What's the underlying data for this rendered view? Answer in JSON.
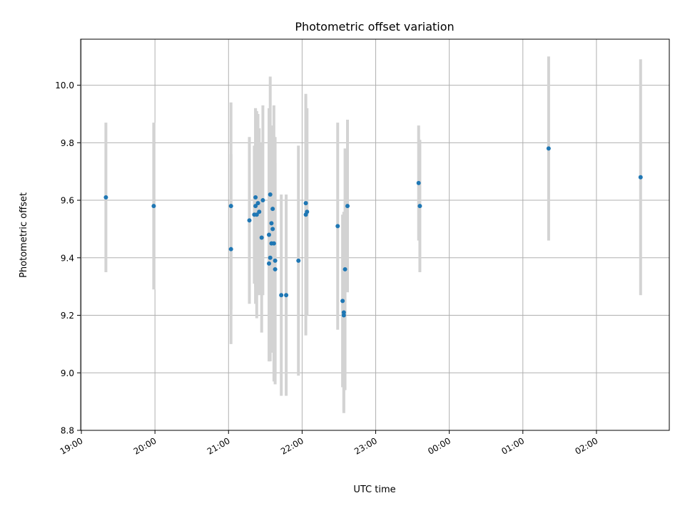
{
  "chart_data": {
    "type": "scatter",
    "title": "Photometric offset variation",
    "xlabel": "UTC time",
    "ylabel": "Photometric offset",
    "x_tick_labels": [
      "19:00",
      "20:00",
      "21:00",
      "22:00",
      "23:00",
      "00:00",
      "01:00",
      "02:00"
    ],
    "y_tick_labels": [
      "8.8",
      "9.0",
      "9.2",
      "9.4",
      "9.6",
      "9.8",
      "10.0"
    ],
    "x_ticks_hours": [
      19,
      20,
      21,
      22,
      23,
      24,
      25,
      26
    ],
    "y_ticks": [
      8.8,
      9.0,
      9.2,
      9.4,
      9.6,
      9.8,
      10.0
    ],
    "xlim_hours": [
      18.99,
      26.99
    ],
    "ylim": [
      8.8,
      10.16
    ],
    "grid": true,
    "marker_color": "#1f77b4",
    "errorbar_color": "#d3d3d3",
    "points": [
      {
        "t": "19:20",
        "y": 9.61,
        "yerr": 0.26
      },
      {
        "t": "19:59",
        "y": 9.58,
        "yerr": 0.29
      },
      {
        "t": "21:02",
        "y": 9.43,
        "yerr": 0.33
      },
      {
        "t": "21:02",
        "y": 9.58,
        "yerr": 0.36
      },
      {
        "t": "21:17",
        "y": 9.53,
        "yerr": 0.29
      },
      {
        "t": "21:21",
        "y": 9.55,
        "yerr": 0.24
      },
      {
        "t": "21:22",
        "y": 9.58,
        "yerr": 0.34
      },
      {
        "t": "21:22",
        "y": 9.61,
        "yerr": 0.31
      },
      {
        "t": "21:23",
        "y": 9.55,
        "yerr": 0.36
      },
      {
        "t": "21:24",
        "y": 9.59,
        "yerr": 0.31
      },
      {
        "t": "21:25",
        "y": 9.56,
        "yerr": 0.29
      },
      {
        "t": "21:27",
        "y": 9.47,
        "yerr": 0.33
      },
      {
        "t": "21:28",
        "y": 9.6,
        "yerr": 0.33
      },
      {
        "t": "21:33",
        "y": 9.38,
        "yerr": 0.34
      },
      {
        "t": "21:33",
        "y": 9.48,
        "yerr": 0.44
      },
      {
        "t": "21:34",
        "y": 9.4,
        "yerr": 0.36
      },
      {
        "t": "21:34",
        "y": 9.62,
        "yerr": 0.41
      },
      {
        "t": "21:35",
        "y": 9.52,
        "yerr": 0.31
      },
      {
        "t": "21:35",
        "y": 9.45,
        "yerr": 0.38
      },
      {
        "t": "21:36",
        "y": 9.57,
        "yerr": 0.29
      },
      {
        "t": "21:36",
        "y": 9.5,
        "yerr": 0.33
      },
      {
        "t": "21:37",
        "y": 9.45,
        "yerr": 0.48
      },
      {
        "t": "21:38",
        "y": 9.39,
        "yerr": 0.43
      },
      {
        "t": "21:38",
        "y": 9.36,
        "yerr": 0.37
      },
      {
        "t": "21:43",
        "y": 9.27,
        "yerr": 0.35
      },
      {
        "t": "21:47",
        "y": 9.27,
        "yerr": 0.35
      },
      {
        "t": "21:57",
        "y": 9.39,
        "yerr": 0.4
      },
      {
        "t": "22:03",
        "y": 9.59,
        "yerr": 0.37
      },
      {
        "t": "22:03",
        "y": 9.55,
        "yerr": 0.42
      },
      {
        "t": "22:04",
        "y": 9.56,
        "yerr": 0.36
      },
      {
        "t": "22:29",
        "y": 9.51,
        "yerr": 0.36
      },
      {
        "t": "22:33",
        "y": 9.25,
        "yerr": 0.3
      },
      {
        "t": "22:34",
        "y": 9.2,
        "yerr": 0.33
      },
      {
        "t": "22:34",
        "y": 9.21,
        "yerr": 0.35
      },
      {
        "t": "22:35",
        "y": 9.36,
        "yerr": 0.42
      },
      {
        "t": "22:37",
        "y": 9.58,
        "yerr": 0.3
      },
      {
        "t": "23:35",
        "y": 9.66,
        "yerr": 0.2
      },
      {
        "t": "23:36",
        "y": 9.58,
        "yerr": 0.23
      },
      {
        "t": "01:21",
        "y": 9.78,
        "yerr": 0.32
      },
      {
        "t": "02:36",
        "y": 9.68,
        "yerr": 0.41
      }
    ]
  }
}
